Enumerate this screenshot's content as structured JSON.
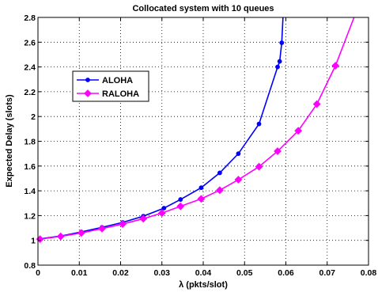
{
  "chart_data": {
    "type": "line",
    "title": "Collocated system with 10 queues",
    "xlabel": "λ (pkts/slot)",
    "ylabel": "Expected Delay (slots)",
    "xlim": [
      0,
      0.08
    ],
    "ylim": [
      0.8,
      2.8
    ],
    "xticks": [
      0,
      0.01,
      0.02,
      0.03,
      0.04,
      0.05,
      0.06,
      0.07,
      0.08
    ],
    "xtick_labels": [
      "0",
      "0.01",
      "0.02",
      "0.03",
      "0.04",
      "0.05",
      "0.06",
      "0.07",
      "0.08"
    ],
    "yticks": [
      0.8,
      1,
      1.2,
      1.4,
      1.6,
      1.8,
      2,
      2.2,
      2.4,
      2.6,
      2.8
    ],
    "ytick_labels": [
      "0.8",
      "1",
      "1.2",
      "1.4",
      "1.6",
      "1.8",
      "2",
      "2.2",
      "2.4",
      "2.6",
      "2.8"
    ],
    "grid": true,
    "legend_position": "upper-left",
    "series": [
      {
        "name": "ALOHA",
        "color": "#0000ff",
        "marker": "circle",
        "x": [
          0.0005,
          0.0055,
          0.0105,
          0.0155,
          0.0205,
          0.0255,
          0.0305,
          0.0345,
          0.0395,
          0.044,
          0.0485,
          0.0535,
          0.058,
          0.0585,
          0.059,
          0.0593
        ],
        "y": [
          1.012,
          1.035,
          1.068,
          1.105,
          1.145,
          1.195,
          1.26,
          1.33,
          1.425,
          1.545,
          1.7,
          1.94,
          2.4,
          2.445,
          2.595,
          2.8
        ]
      },
      {
        "name": "RALOHA",
        "color": "#ff00ff",
        "marker": "diamond",
        "x": [
          0.0005,
          0.0055,
          0.0105,
          0.0155,
          0.0205,
          0.0255,
          0.03,
          0.0345,
          0.0395,
          0.044,
          0.0485,
          0.0535,
          0.058,
          0.063,
          0.0675,
          0.072,
          0.0765
        ],
        "y": [
          1.01,
          1.032,
          1.06,
          1.095,
          1.132,
          1.175,
          1.22,
          1.275,
          1.335,
          1.405,
          1.49,
          1.595,
          1.72,
          1.885,
          2.1,
          2.41,
          2.8
        ]
      }
    ]
  }
}
